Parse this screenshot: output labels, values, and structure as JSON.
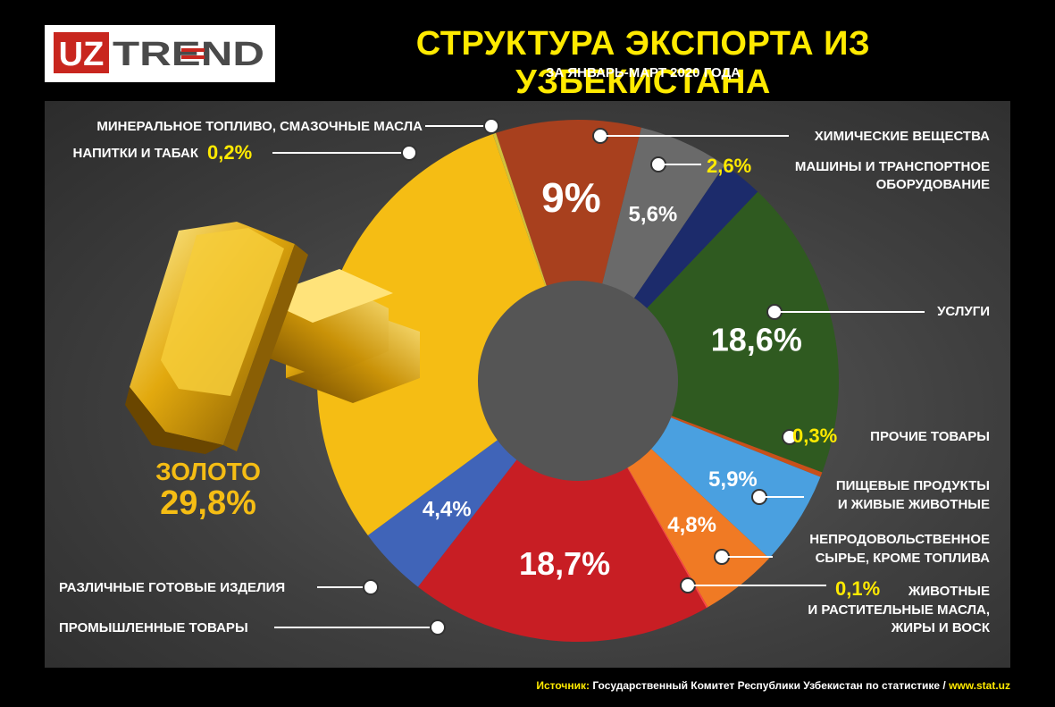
{
  "logo": {
    "text_uz": "UZ",
    "text_trend": "TREND"
  },
  "header": {
    "title": "СТРУКТУРА ЭКСПОРТА ИЗ УЗБЕКИСТАНА",
    "subtitle": "ЗА ЯНВАРЬ-МАРТ 2020 ГОДА"
  },
  "footer": {
    "source_label": "Источник:",
    "source_text": "Государственный Комитет Республики Узбекистан по статистике /",
    "url": "www.stat.uz"
  },
  "colors": {
    "gold": "#f5bd14",
    "highlight_text": "#ffea00",
    "minerals": "#a8401e",
    "chemicals": "#6a6a6a",
    "machinery": "#1c2b6b",
    "services": "#2f5a20",
    "other": "#c8501a",
    "food": "#4aa0e0",
    "nonfood": "#f07a24",
    "oils": "#ff4444",
    "industrial": "#c81e24",
    "manufactured": "#4064b8",
    "beverages": "#d3c23b"
  },
  "chart_data": {
    "type": "pie",
    "donut": true,
    "unit": "%",
    "title": "СТРУКТУРА ЭКСПОРТА ИЗ УЗБЕКИСТАНА",
    "subtitle": "ЗА ЯНВАРЬ-МАРТ 2020 ГОДА",
    "slices": [
      {
        "key": "minerals",
        "label": "МИНЕРАЛЬНОЕ ТОПЛИВО, СМАЗОЧНЫЕ МАСЛА",
        "value": 9.0,
        "display": "9%",
        "color": "#a8401e"
      },
      {
        "key": "chemicals",
        "label": "ХИМИЧЕСКИЕ ВЕЩЕСТВА",
        "value": 5.6,
        "display": "5,6%",
        "color": "#6a6a6a"
      },
      {
        "key": "machinery",
        "label": "МАШИНЫ И ТРАНСПОРТНОЕ ОБОРУДОВАНИЕ",
        "value": 2.6,
        "display": "2,6%",
        "color": "#1c2b6b"
      },
      {
        "key": "services",
        "label": "УСЛУГИ",
        "value": 18.6,
        "display": "18,6%",
        "color": "#2f5a20"
      },
      {
        "key": "other",
        "label": "ПРОЧИЕ ТОВАРЫ",
        "value": 0.3,
        "display": "0,3%",
        "color": "#c8501a"
      },
      {
        "key": "food",
        "label": "ПИЩЕВЫЕ ПРОДУКТЫ И ЖИВЫЕ ЖИВОТНЫЕ",
        "value": 5.9,
        "display": "5,9%",
        "color": "#4aa0e0"
      },
      {
        "key": "nonfood",
        "label": "НЕПРОДОВОЛЬСТВЕННОЕ СЫРЬЕ, КРОМЕ ТОПЛИВА",
        "value": 4.8,
        "display": "4,8%",
        "color": "#f07a24"
      },
      {
        "key": "oils",
        "label": "ЖИВОТНЫЕ И РАСТИТЕЛЬНЫЕ МАСЛА, ЖИРЫ И ВОСК",
        "value": 0.1,
        "display": "0,1%",
        "color": "#ff4444"
      },
      {
        "key": "industrial",
        "label": "ПРОМЫШЛЕННЫЕ ТОВАРЫ",
        "value": 18.7,
        "display": "18,7%",
        "color": "#c81e24"
      },
      {
        "key": "manufactured",
        "label": "РАЗЛИЧНЫЕ ГОТОВЫЕ ИЗДЕЛИЯ",
        "value": 4.4,
        "display": "4,4%",
        "color": "#4064b8"
      },
      {
        "key": "gold",
        "label": "ЗОЛОТО",
        "value": 29.8,
        "display": "29,8%",
        "color": "#f5bd14"
      },
      {
        "key": "beverages",
        "label": "НАПИТКИ И ТАБАК",
        "value": 0.2,
        "display": "0,2%",
        "color": "#d3c23b"
      }
    ],
    "callouts": {
      "minerals_label": "МИНЕРАЛЬНОЕ ТОПЛИВО, СМАЗОЧНЫЕ МАСЛА",
      "beverages_label": "НАПИТКИ И ТАБАК",
      "beverages_value": "0,2%",
      "chemicals_label": "ХИМИЧЕСКИЕ ВЕЩЕСТВА",
      "machinery_value": "2,6%",
      "machinery_label_1": "МАШИНЫ И ТРАНСПОРТНОЕ",
      "machinery_label_2": "ОБОРУДОВАНИЕ",
      "services_label": "УСЛУГИ",
      "other_value": "0,3%",
      "other_label": "ПРОЧИЕ ТОВАРЫ",
      "food_label_1": "ПИЩЕВЫЕ ПРОДУКТЫ",
      "food_label_2": "И ЖИВЫЕ ЖИВОТНЫЕ",
      "nonfood_label_1": "НЕПРОДОВОЛЬСТВЕННОЕ",
      "nonfood_label_2": "СЫРЬЕ, КРОМЕ ТОПЛИВА",
      "oils_value": "0,1%",
      "oils_label_1": "ЖИВОТНЫЕ",
      "oils_label_2": "И РАСТИТЕЛЬНЫЕ МАСЛА,",
      "oils_label_3": "ЖИРЫ И ВОСК",
      "manufactured_label": "РАЗЛИЧНЫЕ ГОТОВЫЕ ИЗДЕЛИЯ",
      "industrial_label": "ПРОМЫШЛЕННЫЕ ТОВАРЫ",
      "gold_label": "ЗОЛОТО",
      "gold_value": "29,8%"
    }
  }
}
